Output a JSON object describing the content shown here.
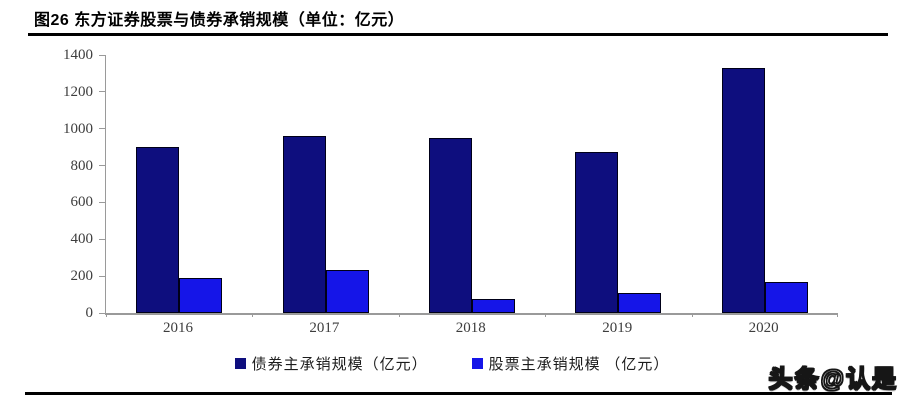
{
  "page": {
    "title": "图26 东方证券股票与债券承销规模（单位：亿元）",
    "watermark": "头条@认是"
  },
  "chart_data": {
    "type": "bar",
    "title": "图26 东方证券股票与债券承销规模（单位：亿元）",
    "categories": [
      "2016",
      "2017",
      "2018",
      "2019",
      "2020"
    ],
    "series": [
      {
        "name": "债券主承销规模（亿元）",
        "color": "#0E0E7E",
        "values": [
          900,
          960,
          950,
          875,
          1330
        ]
      },
      {
        "name": "股票主承销规模 （亿元）",
        "color": "#1515E8",
        "values": [
          190,
          235,
          75,
          110,
          170
        ]
      }
    ],
    "ylabel": "",
    "xlabel": "",
    "ylim": [
      0,
      1400
    ],
    "yticks": [
      0,
      200,
      400,
      600,
      800,
      1000,
      1200,
      1400
    ],
    "grid": false,
    "legend_position": "bottom",
    "axis_color": "#9a9a9a",
    "tick_label_color": "#3d3d3d",
    "bar_border_color": "#000018"
  }
}
